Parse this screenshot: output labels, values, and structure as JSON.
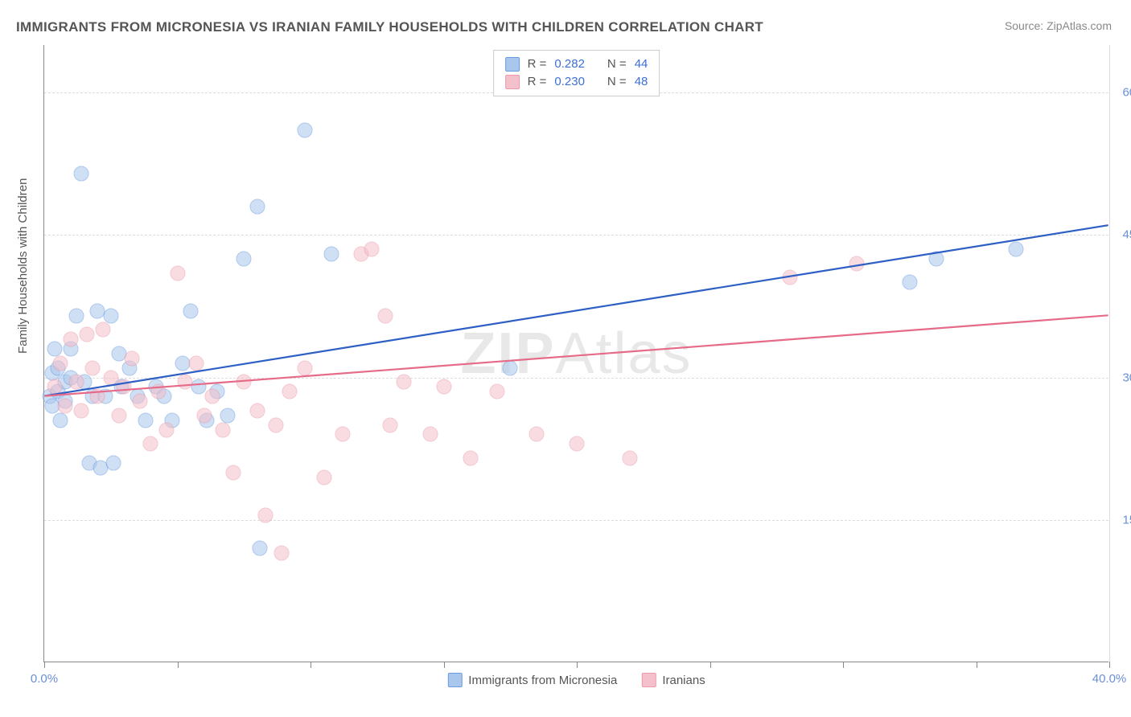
{
  "title": "IMMIGRANTS FROM MICRONESIA VS IRANIAN FAMILY HOUSEHOLDS WITH CHILDREN CORRELATION CHART",
  "source_label": "Source: ZipAtlas.com",
  "y_axis_title": "Family Households with Children",
  "watermark_prefix": "ZIP",
  "watermark_suffix": "Atlas",
  "chart": {
    "type": "scatter",
    "background_color": "#ffffff",
    "grid_color": "#dddddd",
    "axis_color": "#888888",
    "xlim": [
      0,
      40
    ],
    "ylim": [
      0,
      65
    ],
    "x_ticks": [
      0,
      5,
      10,
      15,
      20,
      25,
      30,
      35,
      40
    ],
    "x_tick_labels": {
      "0": "0.0%",
      "40": "40.0%"
    },
    "y_gridlines": [
      15,
      30,
      45,
      60
    ],
    "y_tick_labels": {
      "15": "15.0%",
      "30": "30.0%",
      "45": "45.0%",
      "60": "60.0%"
    },
    "marker_radius": 9.5,
    "marker_opacity": 0.55,
    "line_width": 2.2,
    "label_fontsize": 15,
    "title_fontsize": 17
  },
  "series": [
    {
      "name": "Immigrants from Micronesia",
      "fill_color": "#a9c6ec",
      "stroke_color": "#6a9ae0",
      "line_color": "#2d5fc4",
      "R": "0.282",
      "N": "44",
      "regression": {
        "x1": 0,
        "y1": 28.0,
        "x2": 40,
        "y2": 46.0
      },
      "points": [
        [
          0.2,
          28.0
        ],
        [
          0.3,
          30.5
        ],
        [
          0.3,
          27.0
        ],
        [
          0.4,
          33.0
        ],
        [
          0.5,
          31.0
        ],
        [
          0.5,
          28.5
        ],
        [
          0.6,
          25.5
        ],
        [
          0.8,
          29.5
        ],
        [
          0.8,
          27.5
        ],
        [
          1.0,
          33.0
        ],
        [
          1.0,
          30.0
        ],
        [
          1.2,
          36.5
        ],
        [
          1.4,
          51.5
        ],
        [
          1.5,
          29.5
        ],
        [
          1.7,
          21.0
        ],
        [
          1.8,
          28.0
        ],
        [
          2.0,
          37.0
        ],
        [
          2.1,
          20.5
        ],
        [
          2.3,
          28.0
        ],
        [
          2.5,
          36.5
        ],
        [
          2.6,
          21.0
        ],
        [
          2.8,
          32.5
        ],
        [
          2.9,
          29.0
        ],
        [
          3.2,
          31.0
        ],
        [
          3.5,
          28.0
        ],
        [
          3.8,
          25.5
        ],
        [
          4.2,
          29.0
        ],
        [
          4.5,
          28.0
        ],
        [
          4.8,
          25.5
        ],
        [
          5.2,
          31.5
        ],
        [
          5.5,
          37.0
        ],
        [
          5.8,
          29.0
        ],
        [
          6.1,
          25.5
        ],
        [
          6.5,
          28.5
        ],
        [
          6.9,
          26.0
        ],
        [
          7.5,
          42.5
        ],
        [
          8.0,
          48.0
        ],
        [
          8.1,
          12.0
        ],
        [
          9.8,
          56.0
        ],
        [
          10.8,
          43.0
        ],
        [
          17.5,
          31.0
        ],
        [
          32.5,
          40.0
        ],
        [
          33.5,
          42.5
        ],
        [
          36.5,
          43.5
        ]
      ]
    },
    {
      "name": "Iranians",
      "fill_color": "#f4c0cb",
      "stroke_color": "#eb9aaa",
      "line_color": "#e56b89",
      "R": "0.230",
      "N": "48",
      "regression": {
        "x1": 0,
        "y1": 28.0,
        "x2": 40,
        "y2": 36.5
      },
      "points": [
        [
          0.4,
          29.0
        ],
        [
          0.6,
          31.5
        ],
        [
          0.8,
          27.0
        ],
        [
          1.0,
          34.0
        ],
        [
          1.2,
          29.5
        ],
        [
          1.4,
          26.5
        ],
        [
          1.6,
          34.5
        ],
        [
          1.8,
          31.0
        ],
        [
          2.0,
          28.0
        ],
        [
          2.2,
          35.0
        ],
        [
          2.5,
          30.0
        ],
        [
          2.8,
          26.0
        ],
        [
          3.0,
          29.0
        ],
        [
          3.3,
          32.0
        ],
        [
          3.6,
          27.5
        ],
        [
          4.0,
          23.0
        ],
        [
          4.3,
          28.5
        ],
        [
          4.6,
          24.5
        ],
        [
          5.0,
          41.0
        ],
        [
          5.3,
          29.5
        ],
        [
          5.7,
          31.5
        ],
        [
          6.0,
          26.0
        ],
        [
          6.3,
          28.0
        ],
        [
          6.7,
          24.5
        ],
        [
          7.1,
          20.0
        ],
        [
          7.5,
          29.5
        ],
        [
          8.0,
          26.5
        ],
        [
          8.3,
          15.5
        ],
        [
          8.7,
          25.0
        ],
        [
          8.9,
          11.5
        ],
        [
          9.2,
          28.5
        ],
        [
          9.8,
          31.0
        ],
        [
          10.5,
          19.5
        ],
        [
          11.2,
          24.0
        ],
        [
          11.9,
          43.0
        ],
        [
          12.3,
          43.5
        ],
        [
          12.8,
          36.5
        ],
        [
          13.0,
          25.0
        ],
        [
          13.5,
          29.5
        ],
        [
          14.5,
          24.0
        ],
        [
          15.0,
          29.0
        ],
        [
          16.0,
          21.5
        ],
        [
          17.0,
          28.5
        ],
        [
          18.5,
          24.0
        ],
        [
          20.0,
          23.0
        ],
        [
          22.0,
          21.5
        ],
        [
          28.0,
          40.5
        ],
        [
          30.5,
          42.0
        ]
      ]
    }
  ],
  "legend_top": {
    "R_label": "R  =",
    "N_label": "N  ="
  },
  "legend_bottom": [
    {
      "label": "Immigrants from Micronesia",
      "fill": "#a9c6ec",
      "stroke": "#6a9ae0"
    },
    {
      "label": "Iranians",
      "fill": "#f4c0cb",
      "stroke": "#eb9aaa"
    }
  ]
}
